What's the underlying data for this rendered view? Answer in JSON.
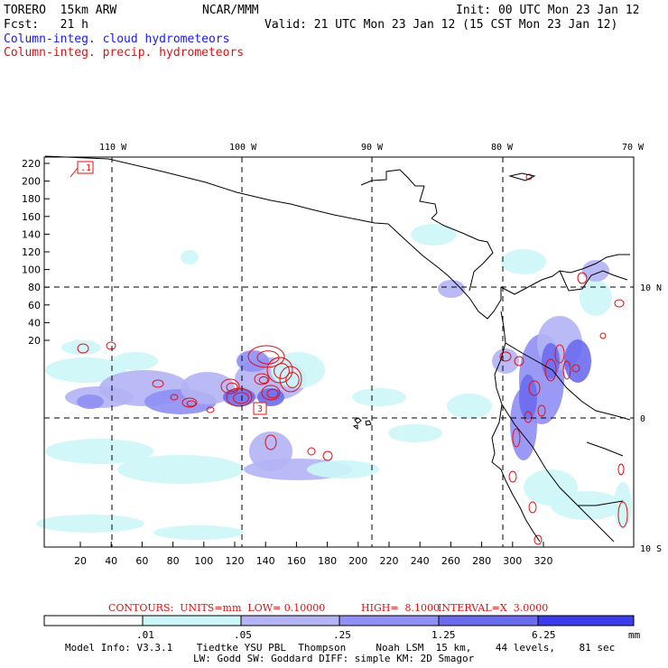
{
  "header": {
    "model": "TORERO  15km ARW",
    "center": "NCAR/MMM",
    "init": "Init: 00 UTC Mon 23 Jan 12",
    "fcst": "Fcst:   21 h",
    "valid": "Valid: 21 UTC Mon 23 Jan 12 (15 CST Mon 23 Jan 12)",
    "field1": "Column-integ. cloud hydrometeors",
    "field2": "Column-integ. precip. hydrometeors"
  },
  "colors": {
    "cloud_text": "#1a1aee",
    "precip_text": "#e01010",
    "levels": [
      "#ffffff",
      "#ccf6f8",
      "#b3b3f5",
      "#8f8ff5",
      "#6b6bf0",
      "#3c3cec",
      "#1414ea"
    ]
  },
  "map": {
    "top_lon_labels": [
      "110 W",
      "100 W",
      "90 W",
      "80 W",
      "70 W"
    ],
    "right_lat_labels": [
      "10 N",
      "0",
      "10 S"
    ],
    "y_ticks": [
      "220",
      "200",
      "180",
      "160",
      "140",
      "120",
      "100",
      "80",
      "60",
      "40",
      "20"
    ],
    "x_ticks": [
      "20",
      "40",
      "60",
      "80",
      "100",
      "120",
      "140",
      "160",
      "180",
      "200",
      "220",
      "240",
      "260",
      "280",
      "300",
      "320"
    ],
    "box_labels": [
      ".1",
      "3"
    ]
  },
  "contours_text": {
    "units": "CONTOURS:  UNITS=mm  LOW= 0.10000",
    "high": "HIGH=  8.1000",
    "interval": "INTERVAL=X  3.0000"
  },
  "colorbar": {
    "labels": [
      ".01",
      ".05",
      ".25",
      "1.25",
      "6.25"
    ],
    "unit": "mm"
  },
  "model_info": {
    "line1": "Model Info: V3.3.1    Tiedtke YSU PBL  Thompson     Noah LSM  15 km,    44 levels,    81 sec",
    "line2": "LW: Godd SW: Goddard DIFF: simple KM: 2D Smagor"
  }
}
